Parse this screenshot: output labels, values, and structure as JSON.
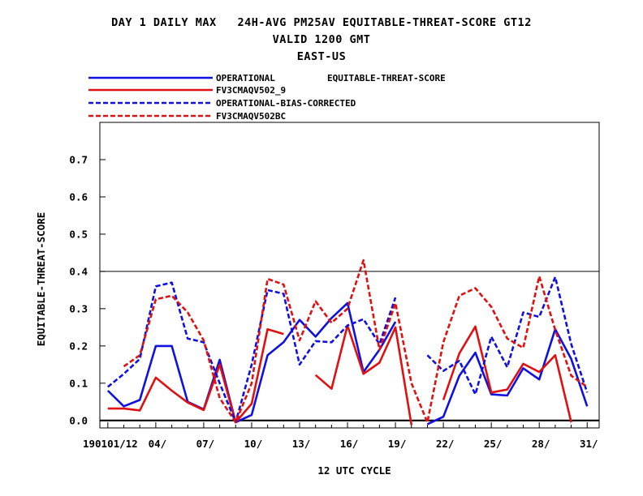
{
  "header": {
    "title_line1": "DAY 1 DAILY MAX   24H-AVG PM25AV EQUITABLE-THREAT-SCORE GT12",
    "title_line2": "VALID 1200 GMT",
    "title_line3": "EAST-US"
  },
  "colors": {
    "blue": "#1010e0",
    "red": "#e01010",
    "axis": "#000000"
  },
  "chart_data": {
    "type": "line",
    "title": "DAY 1 DAILY MAX   24H-AVG PM25AV EQUITABLE-THREAT-SCORE GT12",
    "subtitle": [
      "VALID 1200 GMT",
      "EAST-US"
    ],
    "xlabel": "12 UTC CYCLE",
    "ylabel": "EQUITABLE-THREAT-SCORE",
    "legend_note": "EQUITABLE-THREAT-SCORE",
    "legend_position": "top-left, above plot",
    "grid": false,
    "reference_line": 0.4,
    "xlim": [
      0.5,
      31.75
    ],
    "ylim": [
      -0.02,
      0.8
    ],
    "yticks": [
      0.0,
      0.1,
      0.2,
      0.3,
      0.4,
      0.5,
      0.6,
      0.7
    ],
    "ytick_labels": [
      "0.0",
      "0.1",
      "0.2",
      "0.3",
      "0.4",
      "0.5",
      "0.6",
      "0.7"
    ],
    "xticks": [
      1,
      4,
      7,
      10,
      13,
      16,
      19,
      22,
      25,
      28,
      31
    ],
    "xtick_labels": [
      "190101/12",
      "04/",
      "07/",
      "10/",
      "13/",
      "16/",
      "19/",
      "22/",
      "25/",
      "28/",
      "31/"
    ],
    "x": [
      1,
      2,
      3,
      4,
      5,
      6,
      7,
      8,
      9,
      10,
      11,
      12,
      13,
      14,
      15,
      16,
      17,
      18,
      19,
      20,
      21,
      22,
      23,
      24,
      25,
      26,
      27,
      28,
      29,
      30,
      31
    ],
    "series": [
      {
        "name": "OPERATIONAL",
        "color": "#1010e0",
        "dash": "solid",
        "values": [
          0.08,
          0.038,
          0.055,
          0.2,
          0.2,
          0.05,
          0.03,
          0.163,
          -0.005,
          0.015,
          0.175,
          0.21,
          0.27,
          0.225,
          0.275,
          0.315,
          0.13,
          0.19,
          0.265,
          null,
          -0.01,
          0.01,
          0.12,
          0.182,
          0.07,
          0.067,
          0.14,
          0.11,
          0.245,
          0.165,
          0.038
        ]
      },
      {
        "name": "FV3CMAQV502_9",
        "color": "#e01010",
        "dash": "solid",
        "values": [
          0.032,
          0.032,
          0.027,
          0.115,
          0.08,
          0.048,
          0.028,
          0.15,
          -0.005,
          0.045,
          0.245,
          0.232,
          null,
          0.122,
          0.085,
          0.255,
          0.125,
          0.155,
          0.25,
          -0.012,
          null,
          0.055,
          0.18,
          0.252,
          0.075,
          0.083,
          0.152,
          0.13,
          0.175,
          -0.005,
          null
        ]
      },
      {
        "name": "OPERATIONAL-BIAS-CORRECTED",
        "color": "#1010e0",
        "dash": "dashed",
        "values": [
          0.09,
          0.125,
          0.165,
          0.36,
          0.37,
          0.22,
          0.21,
          0.1,
          -0.005,
          0.15,
          0.35,
          0.34,
          0.15,
          0.213,
          0.21,
          0.255,
          0.272,
          0.205,
          0.33,
          null,
          0.175,
          0.133,
          0.16,
          0.07,
          0.225,
          0.143,
          0.29,
          0.278,
          0.385,
          0.205,
          0.075
        ]
      },
      {
        "name": "FV3CMAQV502BC",
        "color": "#e01010",
        "dash": "dashed",
        "values": [
          null,
          0.145,
          0.175,
          0.325,
          0.335,
          0.29,
          0.215,
          0.06,
          -0.005,
          0.1,
          0.38,
          0.365,
          0.215,
          0.32,
          0.262,
          0.3,
          0.43,
          0.19,
          0.315,
          0.1,
          -0.005,
          0.21,
          0.335,
          0.355,
          0.305,
          0.22,
          0.195,
          0.387,
          0.243,
          0.12,
          0.09
        ]
      }
    ]
  }
}
